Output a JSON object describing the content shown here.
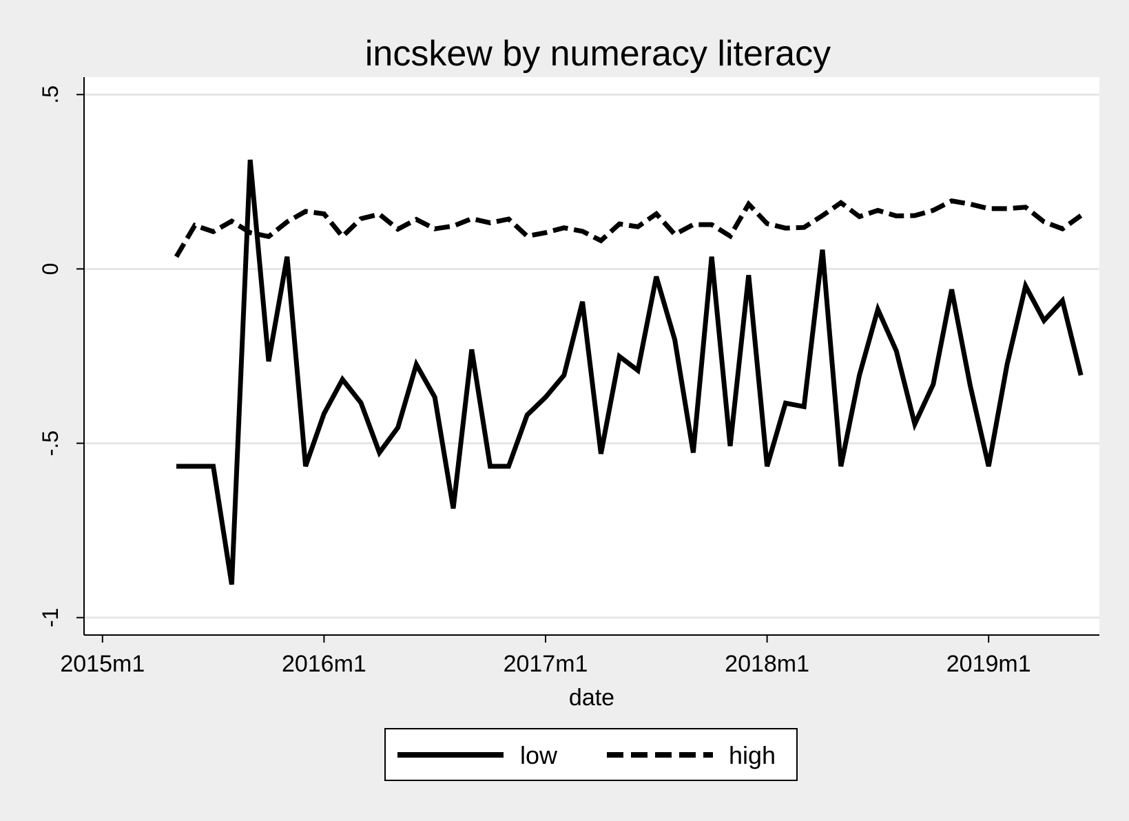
{
  "chart_data": {
    "type": "line",
    "title": "incskew by numeracy literacy",
    "xlabel": "date",
    "ylabel": "",
    "x_tick_labels": [
      "2015m1",
      "2016m1",
      "2017m1",
      "2018m1",
      "2019m1"
    ],
    "x_tick_values": [
      "2015-01",
      "2016-01",
      "2017-01",
      "2018-01",
      "2019-01"
    ],
    "xlim": [
      "2014-12",
      "2019-07"
    ],
    "y_tick_labels": [
      "-1",
      "-.5",
      "0",
      ".5"
    ],
    "y_tick_values": [
      -1,
      -0.5,
      0,
      0.5
    ],
    "ylim": [
      -1.05,
      0.55
    ],
    "grid": true,
    "legend_position": "bottom",
    "x": [
      "2015-05",
      "2015-06",
      "2015-07",
      "2015-08",
      "2015-09",
      "2015-10",
      "2015-11",
      "2015-12",
      "2016-01",
      "2016-02",
      "2016-03",
      "2016-04",
      "2016-05",
      "2016-06",
      "2016-07",
      "2016-08",
      "2016-09",
      "2016-10",
      "2016-11",
      "2016-12",
      "2017-01",
      "2017-02",
      "2017-03",
      "2017-04",
      "2017-05",
      "2017-06",
      "2017-07",
      "2017-08",
      "2017-09",
      "2017-10",
      "2017-11",
      "2017-12",
      "2018-01",
      "2018-02",
      "2018-03",
      "2018-04",
      "2018-05",
      "2018-06",
      "2018-07",
      "2018-08",
      "2018-09",
      "2018-10",
      "2018-11",
      "2018-12",
      "2019-01",
      "2019-02",
      "2019-03",
      "2019-04",
      "2019-05",
      "2019-06"
    ],
    "series": [
      {
        "name": "low",
        "style": "solid",
        "color": "#000000",
        "values": [
          -0.566,
          -0.566,
          -0.566,
          -0.905,
          0.313,
          -0.265,
          0.035,
          -0.566,
          -0.415,
          -0.317,
          -0.384,
          -0.527,
          -0.455,
          -0.274,
          -0.368,
          -0.687,
          -0.231,
          -0.566,
          -0.566,
          -0.419,
          -0.368,
          -0.305,
          -0.094,
          -0.53,
          -0.251,
          -0.291,
          -0.022,
          -0.203,
          -0.527,
          0.035,
          -0.508,
          -0.018,
          -0.566,
          -0.385,
          -0.395,
          0.055,
          -0.566,
          -0.305,
          -0.116,
          -0.235,
          -0.445,
          -0.331,
          -0.059,
          -0.334,
          -0.566,
          -0.274,
          -0.049,
          -0.148,
          -0.091,
          -0.305
        ]
      },
      {
        "name": "high",
        "style": "dashed",
        "color": "#000000",
        "values": [
          0.035,
          0.125,
          0.107,
          0.137,
          0.104,
          0.093,
          0.135,
          0.165,
          0.158,
          0.093,
          0.144,
          0.157,
          0.114,
          0.142,
          0.115,
          0.123,
          0.144,
          0.132,
          0.143,
          0.094,
          0.104,
          0.118,
          0.108,
          0.081,
          0.129,
          0.121,
          0.158,
          0.099,
          0.127,
          0.127,
          0.094,
          0.186,
          0.13,
          0.117,
          0.119,
          0.153,
          0.19,
          0.15,
          0.168,
          0.152,
          0.153,
          0.168,
          0.195,
          0.186,
          0.173,
          0.173,
          0.177,
          0.135,
          0.115,
          0.153
        ]
      }
    ]
  }
}
